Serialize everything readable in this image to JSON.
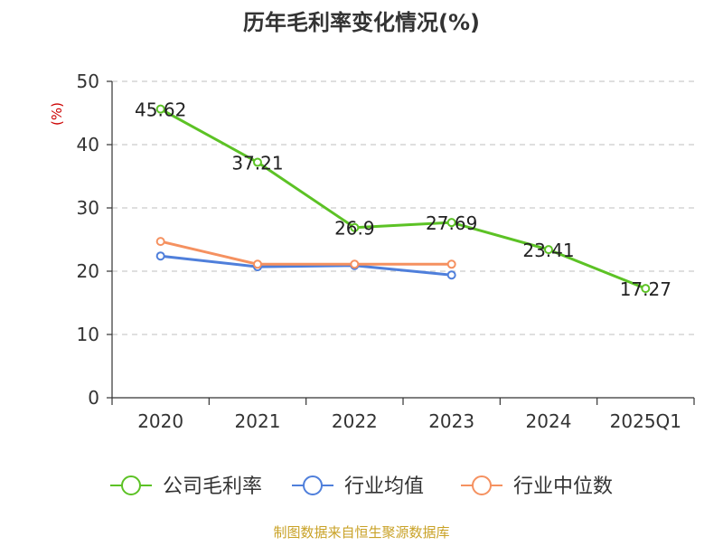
{
  "chart_data": {
    "type": "line",
    "title": "历年毛利率变化情况(%)",
    "ylabel": "(%)",
    "xlabel": "",
    "categories": [
      "2020",
      "2021",
      "2022",
      "2023",
      "2024",
      "2025Q1"
    ],
    "ylim": [
      0,
      50
    ],
    "yticks": [
      0,
      10,
      20,
      30,
      40,
      50
    ],
    "grid": true,
    "legend_position": "bottom",
    "series": [
      {
        "name": "公司毛利率",
        "color": "#5cc225",
        "values": [
          45.62,
          37.21,
          26.9,
          27.69,
          23.41,
          17.27
        ],
        "labels": [
          "45.62",
          "37.21",
          "26.9",
          "27.69",
          "23.41",
          "17.27"
        ]
      },
      {
        "name": "行业均值",
        "color": "#4f7fdb",
        "values": [
          22.4,
          20.7,
          20.9,
          19.4,
          null,
          null
        ]
      },
      {
        "name": "行业中位数",
        "color": "#f59160",
        "values": [
          24.7,
          21.1,
          21.1,
          21.1,
          null,
          null
        ]
      }
    ],
    "source": "制图数据来自恒生聚源数据库"
  }
}
